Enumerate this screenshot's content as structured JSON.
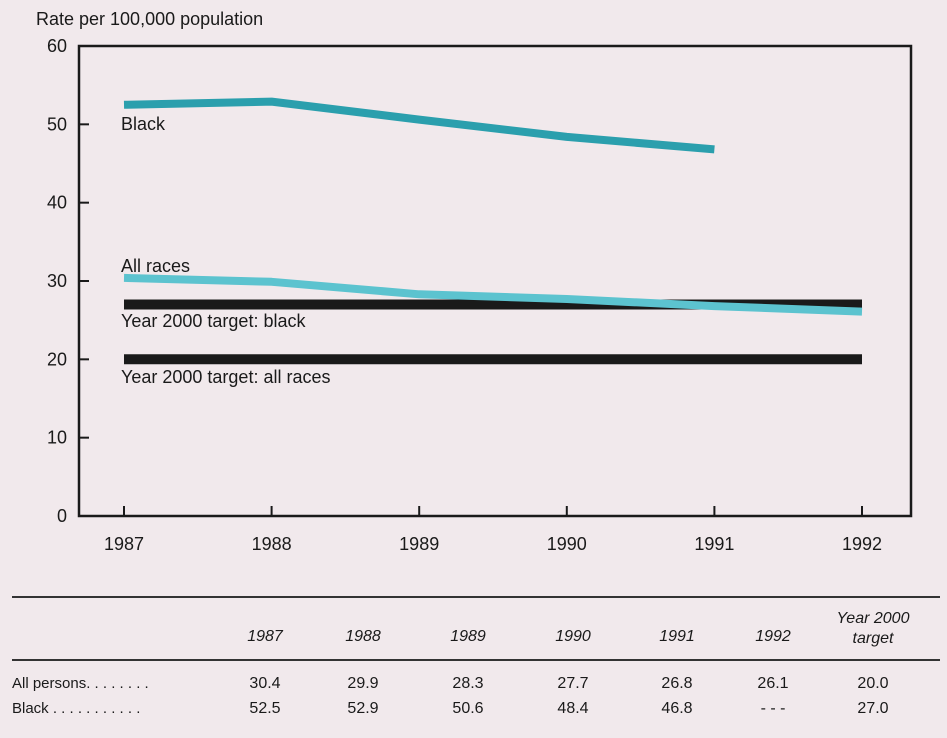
{
  "chart_data": {
    "type": "line",
    "ylabel": "Rate per 100,000 population",
    "xlabel": "",
    "title": "",
    "x": [
      1987,
      1988,
      1989,
      1990,
      1991,
      1992
    ],
    "xlim": [
      1987,
      1992
    ],
    "ylim": [
      0,
      60
    ],
    "yticks": [
      0,
      10,
      20,
      30,
      40,
      50,
      60
    ],
    "xtick_labels": [
      "1987",
      "1988",
      "1989",
      "1990",
      "1991",
      "1992"
    ],
    "ytick_labels": [
      "0",
      "10",
      "20",
      "30",
      "40",
      "50",
      "60"
    ],
    "grid": false,
    "series": [
      {
        "name": "Black",
        "values": [
          52.5,
          52.9,
          50.6,
          48.4,
          46.8,
          null
        ],
        "color": "#2b9fad"
      },
      {
        "name": "All races",
        "values": [
          30.4,
          29.9,
          28.3,
          27.7,
          26.8,
          26.1
        ],
        "color": "#5cc3cf"
      },
      {
        "name": "Year 2000 target: black",
        "values": [
          27.0,
          27.0,
          27.0,
          27.0,
          27.0,
          27.0
        ],
        "color": "#1a1a1a"
      },
      {
        "name": "Year 2000 target: all races",
        "values": [
          20.0,
          20.0,
          20.0,
          20.0,
          20.0,
          20.0
        ],
        "color": "#1a1a1a"
      }
    ]
  },
  "table": {
    "columns": [
      "1987",
      "1988",
      "1989",
      "1990",
      "1991",
      "1992"
    ],
    "target_header_line1": "Year 2000",
    "target_header_line2": "target",
    "rows": [
      {
        "label": "All persons. . . . . . . .",
        "values": [
          "30.4",
          "29.9",
          "28.3",
          "27.7",
          "26.8",
          "26.1"
        ],
        "target": "20.0"
      },
      {
        "label": "Black . . . . . . . . . . .",
        "values": [
          "52.5",
          "52.9",
          "50.6",
          "48.4",
          "46.8",
          "- - -"
        ],
        "target": "27.0"
      }
    ]
  }
}
